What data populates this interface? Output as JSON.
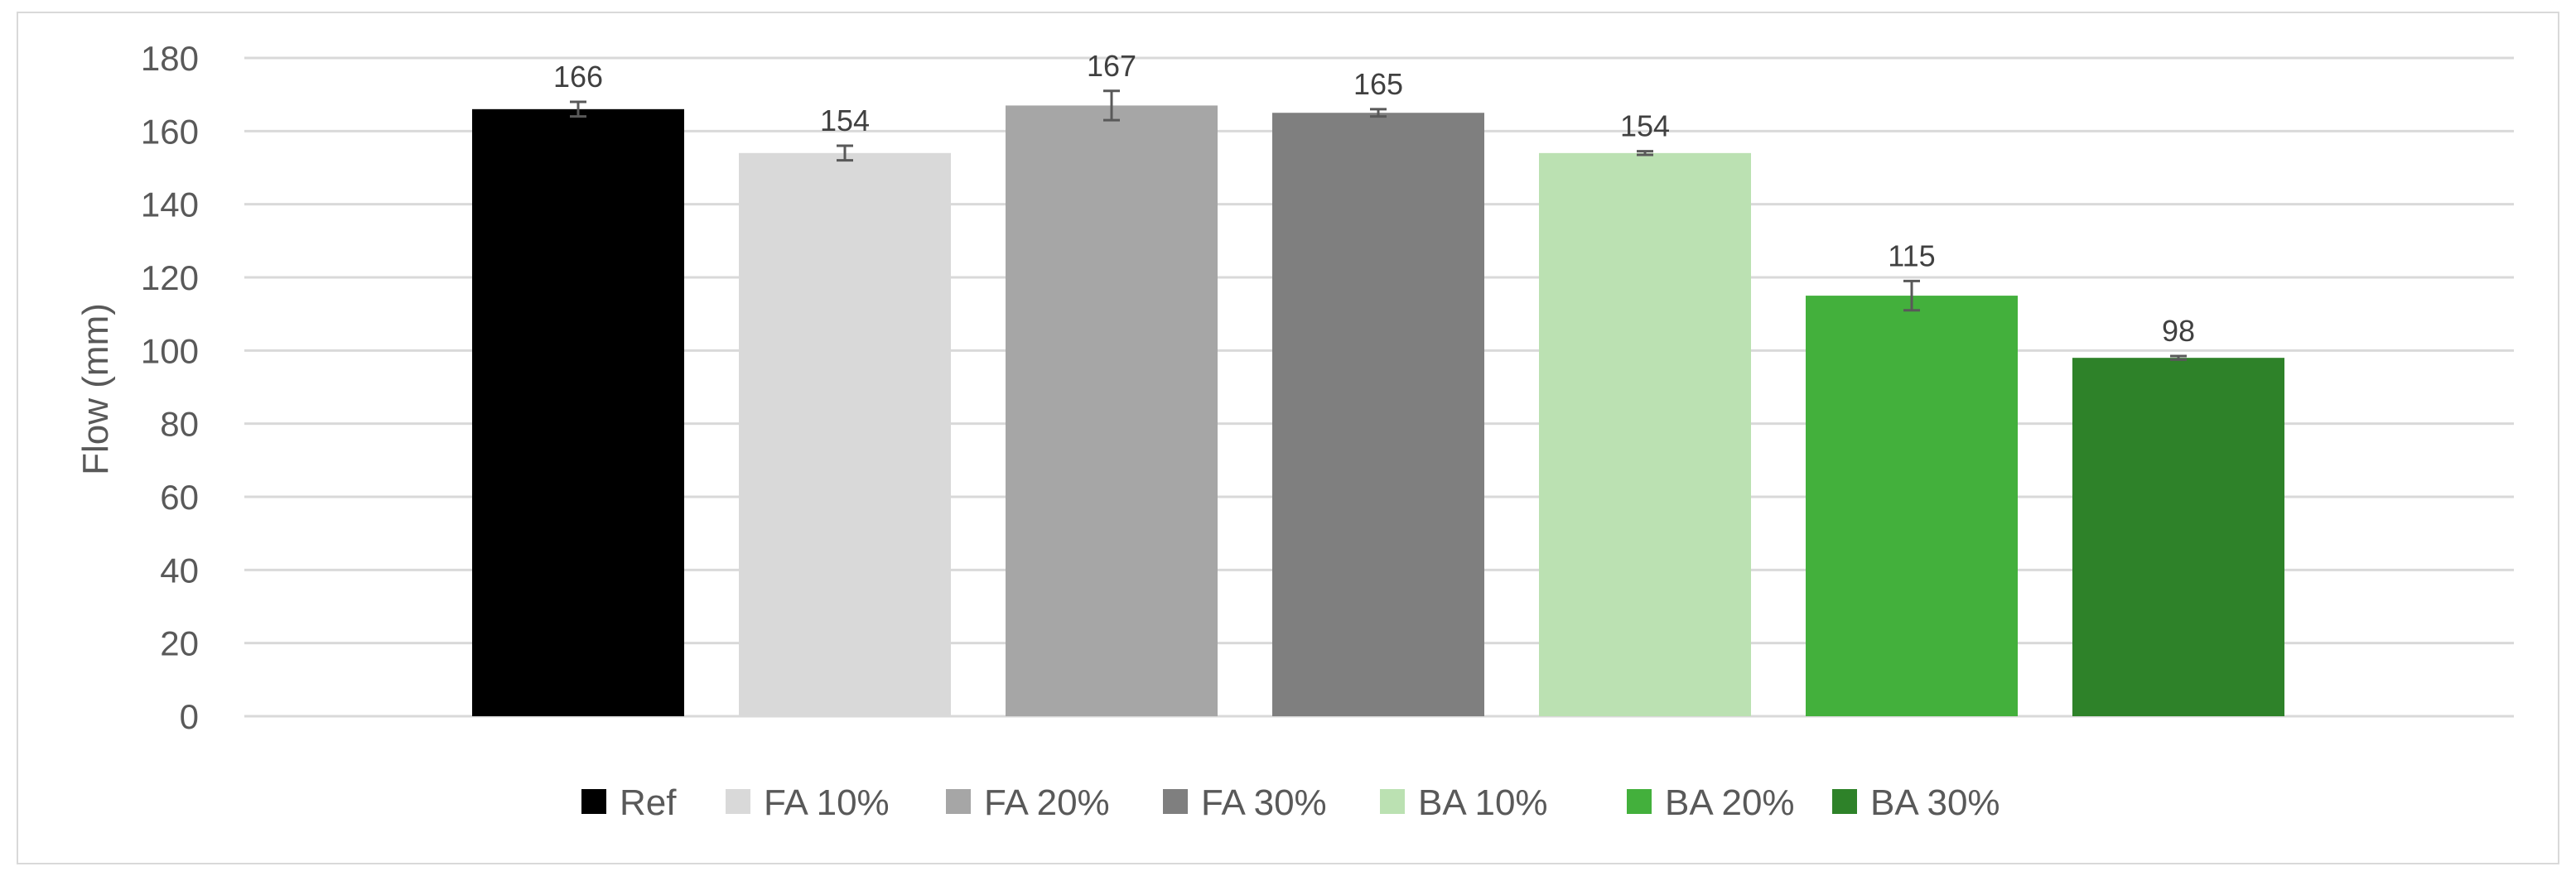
{
  "chart_data": {
    "type": "bar",
    "title": "",
    "xlabel": "",
    "ylabel": "Flow (mm)",
    "ylim": [
      0,
      180
    ],
    "yticks": [
      0,
      20,
      40,
      60,
      80,
      100,
      120,
      140,
      160,
      180
    ],
    "grid": true,
    "legend_position": "bottom",
    "categories": [
      "Ref",
      "FA 10%",
      "FA 20%",
      "FA 30%",
      "BA 10%",
      "BA 20%",
      "BA 30%"
    ],
    "values": [
      166,
      154,
      167,
      165,
      154,
      115,
      98
    ],
    "error": [
      2,
      2,
      4,
      1,
      0.5,
      4,
      0.5
    ],
    "data_labels": [
      "166",
      "154",
      "167",
      "165",
      "154",
      "115",
      "98"
    ],
    "colors": [
      "#000000",
      "#d9d9d9",
      "#a6a6a6",
      "#7f7f7f",
      "#bbe1b2",
      "#43b03c",
      "#2e8229"
    ]
  }
}
